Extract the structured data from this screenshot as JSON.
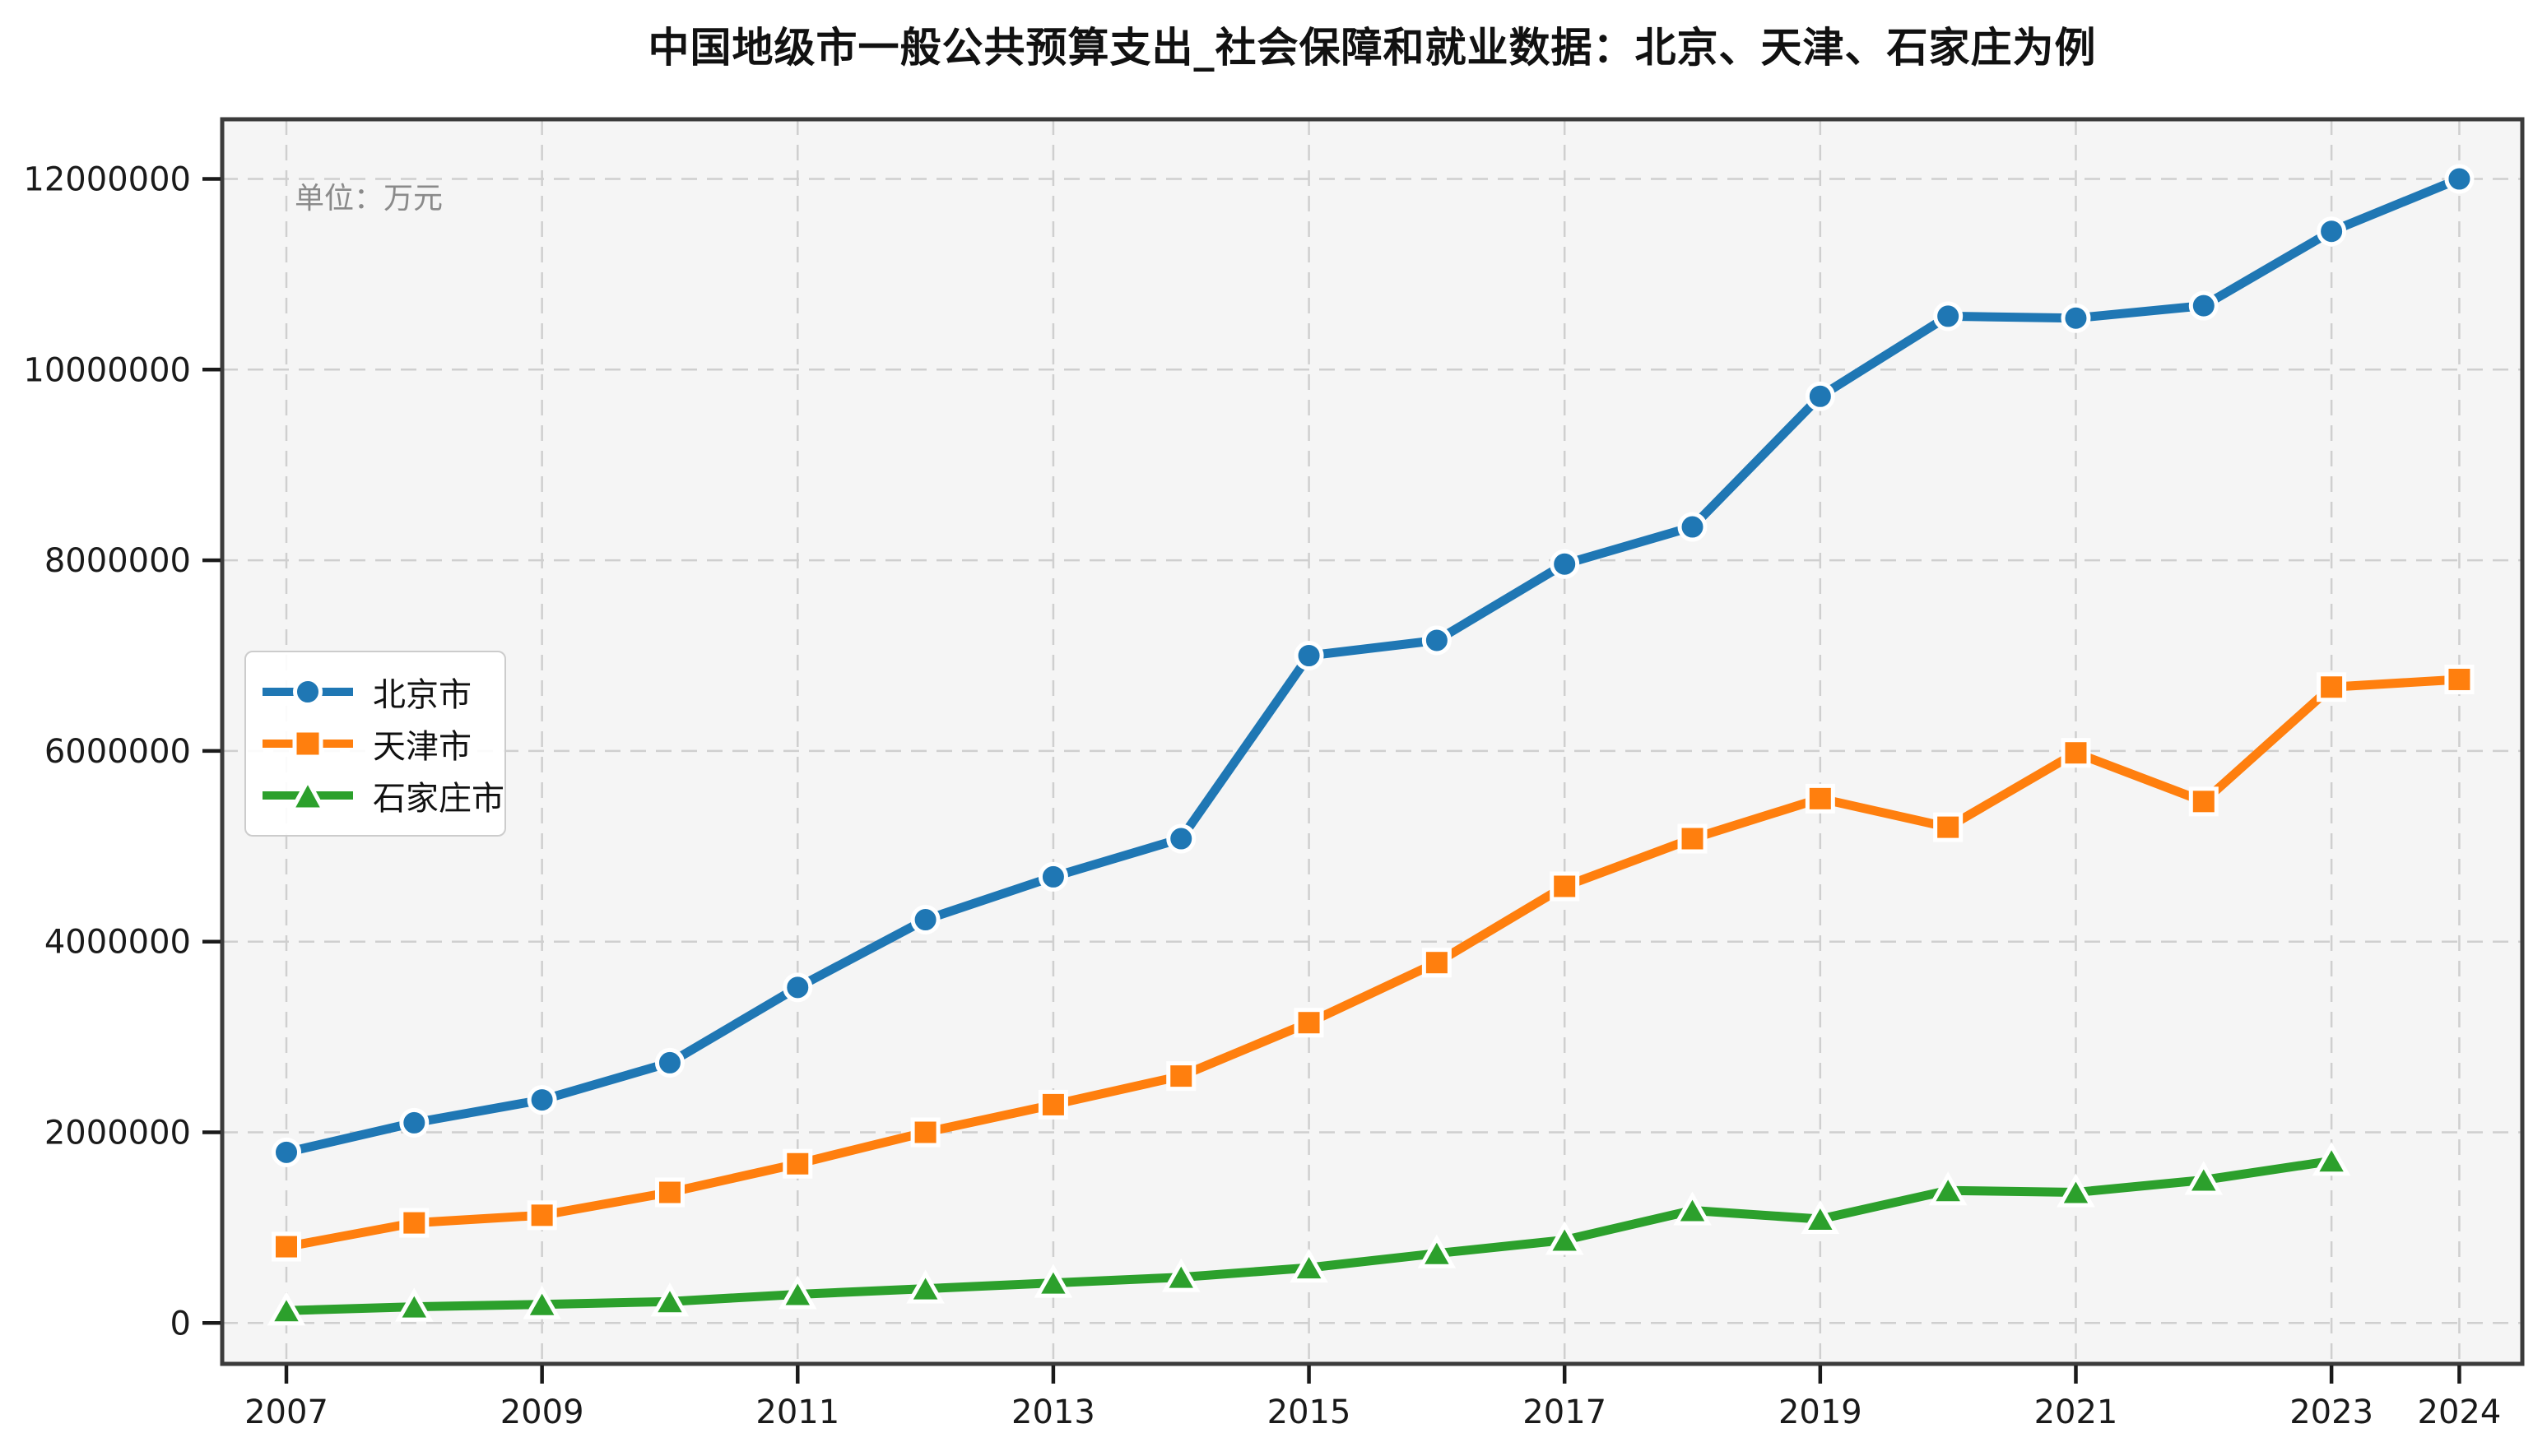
{
  "figure": {
    "title": "中国地级市一般公共预算支出_社会保障和就业数据：北京、天津、石家庄为例",
    "unit_label": "单位：万元"
  },
  "legend": {
    "position": "center-left",
    "items": [
      {
        "key": "beijing",
        "label": "北京市",
        "color": "#1f77b4",
        "marker": "circle"
      },
      {
        "key": "tianjin",
        "label": "天津市",
        "color": "#ff7f0e",
        "marker": "square"
      },
      {
        "key": "shijiazhuang",
        "label": "石家庄市",
        "color": "#2ca02c",
        "marker": "triangle"
      }
    ]
  },
  "chart_data": {
    "type": "line",
    "title": "中国地级市一般公共预算支出_社会保障和就业数据：北京、天津、石家庄为例",
    "unit": "万元",
    "xlabel": "",
    "ylabel": "",
    "grid": true,
    "plot_background": "#f5f5f5",
    "grid_color": "#cfcfcf",
    "spine_color": "#3b3b3b",
    "x": [
      2007,
      2008,
      2009,
      2010,
      2011,
      2012,
      2013,
      2014,
      2015,
      2016,
      2017,
      2018,
      2019,
      2020,
      2021,
      2022,
      2023,
      2024
    ],
    "xticks": [
      2007,
      2009,
      2011,
      2013,
      2015,
      2017,
      2019,
      2021,
      2023,
      2024
    ],
    "yticks": [
      0,
      2000000,
      4000000,
      6000000,
      8000000,
      10000000,
      12000000
    ],
    "ytick_labels": [
      "0",
      "2000000",
      "4000000",
      "6000000",
      "8000000",
      "10000000",
      "12000000"
    ],
    "ylim": [
      -430000,
      12620000
    ],
    "xlim": [
      2006.5,
      2024.5
    ],
    "series": [
      {
        "key": "beijing",
        "name": "北京市",
        "color": "#1f77b4",
        "marker": "circle",
        "values": [
          1790000,
          2100000,
          2340000,
          2730000,
          3520000,
          4230000,
          4680000,
          5080000,
          7000000,
          7160000,
          7960000,
          8350000,
          9720000,
          10560000,
          10540000,
          10670000,
          11450000,
          12000000
        ]
      },
      {
        "key": "tianjin",
        "name": "天津市",
        "color": "#ff7f0e",
        "marker": "square",
        "values": [
          800000,
          1050000,
          1130000,
          1370000,
          1670000,
          2000000,
          2290000,
          2590000,
          3150000,
          3780000,
          4580000,
          5080000,
          5500000,
          5200000,
          5980000,
          5470000,
          6670000,
          6750000
        ]
      },
      {
        "key": "shijiazhuang",
        "name": "石家庄市",
        "color": "#2ca02c",
        "marker": "triangle",
        "values": [
          130000,
          170000,
          195000,
          225000,
          300000,
          360000,
          420000,
          480000,
          580000,
          730000,
          870000,
          1180000,
          1090000,
          1390000,
          1370000,
          1500000,
          1700000,
          null
        ]
      }
    ]
  }
}
